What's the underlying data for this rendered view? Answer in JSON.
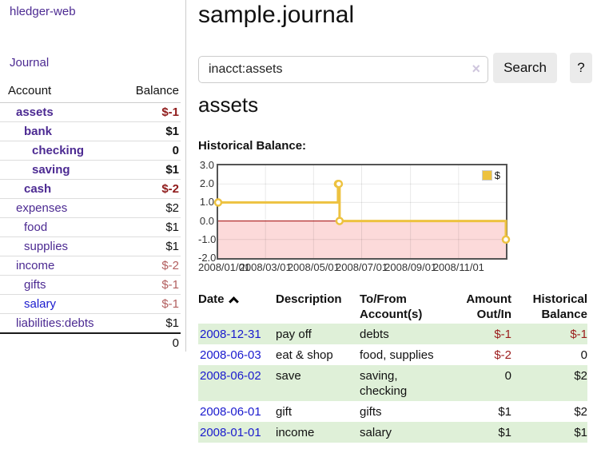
{
  "app": {
    "title": "hledger-web",
    "nav_journal": "Journal"
  },
  "sidebar": {
    "table": {
      "col_account": "Account",
      "col_balance": "Balance"
    },
    "accounts": [
      {
        "name": "assets",
        "balance": "$-1",
        "indent": 1,
        "matched": true,
        "unvisited": false
      },
      {
        "name": "bank",
        "balance": "$1",
        "indent": 2,
        "matched": true,
        "unvisited": false
      },
      {
        "name": "checking",
        "balance": "0",
        "indent": 3,
        "matched": true,
        "unvisited": false
      },
      {
        "name": "saving",
        "balance": "$1",
        "indent": 3,
        "matched": true,
        "unvisited": false
      },
      {
        "name": "cash",
        "balance": "$-2",
        "indent": 2,
        "matched": true,
        "unvisited": false
      },
      {
        "name": "expenses",
        "balance": "$2",
        "indent": 1,
        "matched": false,
        "unvisited": false
      },
      {
        "name": "food",
        "balance": "$1",
        "indent": 2,
        "matched": false,
        "unvisited": false
      },
      {
        "name": "supplies",
        "balance": "$1",
        "indent": 2,
        "matched": false,
        "unvisited": false
      },
      {
        "name": "income",
        "balance": "$-2",
        "indent": 1,
        "matched": false,
        "unvisited": false
      },
      {
        "name": "gifts",
        "balance": "$-1",
        "indent": 2,
        "matched": false,
        "unvisited": false
      },
      {
        "name": "salary",
        "balance": "$-1",
        "indent": 2,
        "matched": false,
        "unvisited": true
      },
      {
        "name": "liabilities:debts",
        "balance": "$1",
        "indent": 1,
        "matched": false,
        "unvisited": false
      }
    ],
    "total": "0"
  },
  "header": {
    "title": "sample.journal"
  },
  "search": {
    "value": "inacct:assets",
    "clear_icon": "×",
    "button": "Search",
    "help_button": "?"
  },
  "account_page": {
    "heading": "assets",
    "chart_label": "Historical Balance:"
  },
  "chart_data": {
    "type": "line",
    "step": true,
    "title": "Historical Balance:",
    "series": [
      {
        "name": "$",
        "color": "#edc240",
        "points": [
          [
            "2008-01-01",
            1
          ],
          [
            "2008-06-01",
            2
          ],
          [
            "2008-06-02",
            2
          ],
          [
            "2008-06-03",
            0
          ],
          [
            "2008-12-31",
            -1
          ]
        ]
      }
    ],
    "x_ticks": [
      "2008/01/01",
      "2008/03/01",
      "2008/05/01",
      "2008/07/01",
      "2008/09/01",
      "2008/11/01"
    ],
    "y_ticks": [
      "3.0",
      "2.0",
      "1.0",
      "0.0",
      "-1.0",
      "-2.0"
    ],
    "xlim": [
      "2008-01-01",
      "2008-12-31"
    ],
    "ylim": [
      -2,
      3
    ],
    "grid": true,
    "negative_region_color": "#fcdada",
    "zero_line_color": "#a00000",
    "legend": {
      "label": "$",
      "swatch_color": "#edc240",
      "position": "top-right"
    }
  },
  "register": {
    "columns": [
      {
        "label": "Date",
        "sorted": "ascending"
      },
      {
        "label": "Description"
      },
      {
        "label": "To/From Account(s)"
      },
      {
        "label": "Amount Out/In",
        "align": "right"
      },
      {
        "label": "Historical Balance",
        "align": "right"
      }
    ],
    "rows": [
      {
        "date": "2008-12-31",
        "description": "pay off",
        "accounts": "debts",
        "amount": "$-1",
        "balance": "$-1"
      },
      {
        "date": "2008-06-03",
        "description": "eat & shop",
        "accounts": "food, supplies",
        "amount": "$-2",
        "balance": "0"
      },
      {
        "date": "2008-06-02",
        "description": "save",
        "accounts": "saving, checking",
        "amount": "0",
        "balance": "$2"
      },
      {
        "date": "2008-06-01",
        "description": "gift",
        "accounts": "gifts",
        "amount": "$1",
        "balance": "$2"
      },
      {
        "date": "2008-01-01",
        "description": "income",
        "accounts": "salary",
        "amount": "$1",
        "balance": "$1"
      }
    ]
  }
}
